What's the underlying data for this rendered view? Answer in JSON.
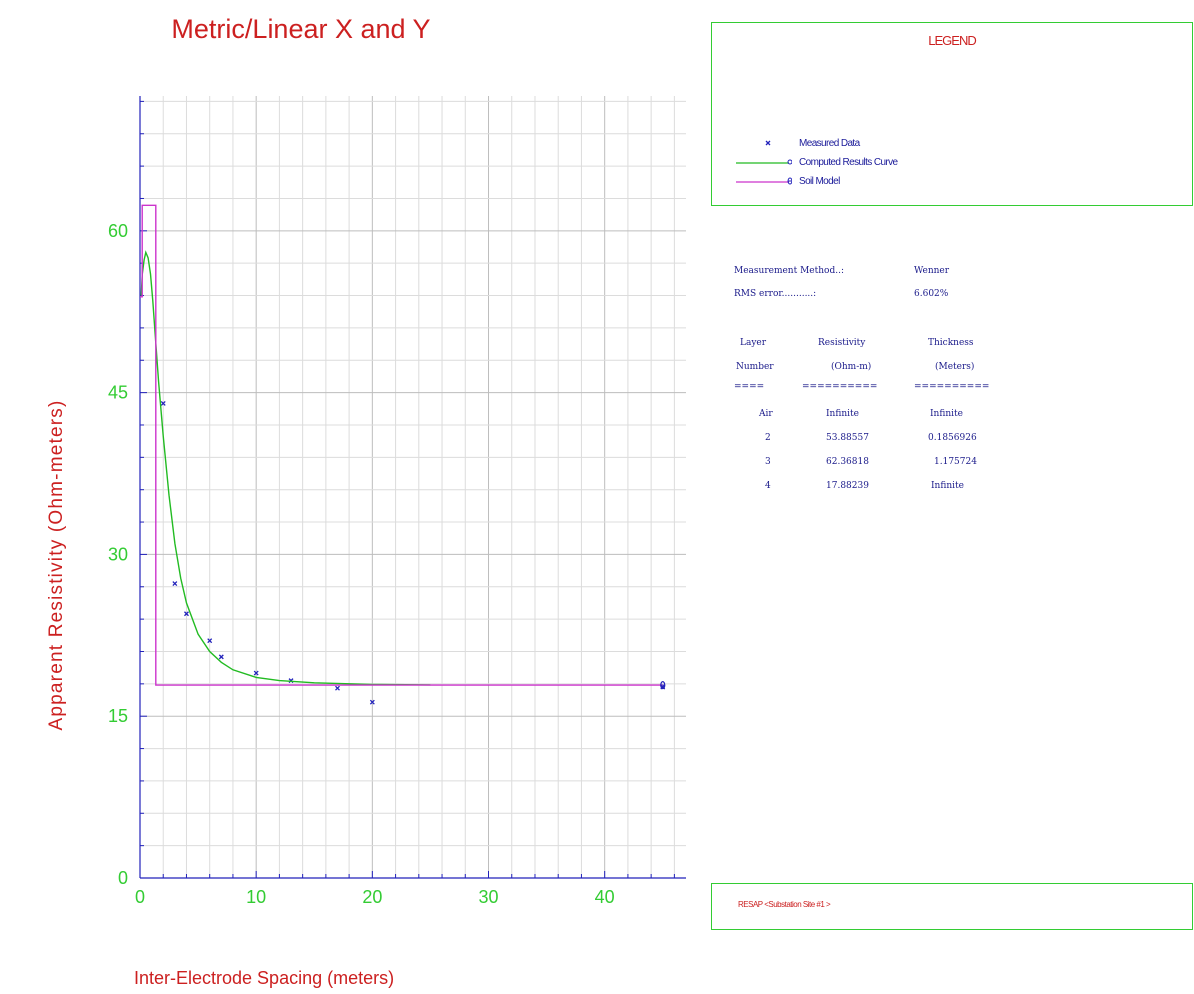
{
  "chart_data": {
    "type": "line",
    "title": "Metric/Linear X and Y",
    "xlabel": "Inter-Electrode Spacing (meters)",
    "ylabel": "Apparent Resistivity (Ohm-meters)",
    "xlim": [
      0,
      47
    ],
    "ylim": [
      0,
      72.5
    ],
    "xticks": [
      0,
      10,
      20,
      30,
      40
    ],
    "yticks": [
      0,
      15,
      30,
      45,
      60
    ],
    "grid": true,
    "legend_placement": "right",
    "series": [
      {
        "name": "Measured Data",
        "style": "markers",
        "color": "#2222bb",
        "points": [
          [
            2,
            44
          ],
          [
            3,
            27.3
          ],
          [
            4,
            24.5
          ],
          [
            6,
            22
          ],
          [
            7,
            20.5
          ],
          [
            10,
            19
          ],
          [
            13,
            18.3
          ],
          [
            17,
            17.6
          ],
          [
            20,
            16.3
          ],
          [
            45,
            17.7
          ]
        ]
      },
      {
        "name": "Computed Results Curve",
        "style": "line",
        "color": "#22bb22",
        "points": [
          [
            0.1,
            54
          ],
          [
            0.2,
            56
          ],
          [
            0.35,
            57.3
          ],
          [
            0.5,
            58
          ],
          [
            0.7,
            57.5
          ],
          [
            0.9,
            56
          ],
          [
            1.1,
            53.5
          ],
          [
            1.3,
            50.5
          ],
          [
            1.6,
            46
          ],
          [
            2,
            41
          ],
          [
            2.5,
            35.5
          ],
          [
            3,
            31
          ],
          [
            3.5,
            27.8
          ],
          [
            4,
            25.5
          ],
          [
            5,
            22.6
          ],
          [
            6,
            21
          ],
          [
            7,
            20
          ],
          [
            8,
            19.3
          ],
          [
            10,
            18.6
          ],
          [
            12,
            18.3
          ],
          [
            15,
            18.1
          ],
          [
            20,
            17.95
          ],
          [
            25,
            17.9
          ]
        ]
      },
      {
        "name": "Soil Model",
        "style": "step",
        "color": "#cc33cc",
        "points": [
          [
            0,
            53.88557
          ],
          [
            0.1856926,
            53.88557
          ],
          [
            0.1856926,
            62.36818
          ],
          [
            1.3613166,
            62.36818
          ],
          [
            1.3613166,
            17.88239
          ],
          [
            45,
            17.88239
          ]
        ]
      }
    ]
  },
  "legend": {
    "title": "LEGEND",
    "items": [
      "Measured Data",
      "Computed Results Curve",
      "Soil Model"
    ]
  },
  "info": {
    "method_label": "Measurement Method..:",
    "method_value": "Wenner",
    "rms_label": "RMS error...........:",
    "rms_value": "6.602%",
    "headers": [
      [
        "Layer",
        "Resistivity",
        "Thickness"
      ],
      [
        "Number",
        "(Ohm-m)",
        "(Meters)"
      ]
    ],
    "separator": [
      "====",
      "==========",
      "=========="
    ],
    "rows": [
      [
        "Air",
        "Infinite",
        "Infinite"
      ],
      [
        "2",
        "53.88557",
        "0.1856926"
      ],
      [
        "3",
        "62.36818",
        "1.175724"
      ],
      [
        "4",
        "17.88239",
        "Infinite"
      ]
    ]
  },
  "footer": {
    "text": "RESAP <Substation Site #1 >"
  },
  "colors": {
    "title": "#cc2020",
    "axis_labels": "#cc2020",
    "tick_labels": "#33cc33",
    "axes": "#2222bb",
    "grid": "#c8c8c8",
    "box_border": "#33cc33"
  }
}
